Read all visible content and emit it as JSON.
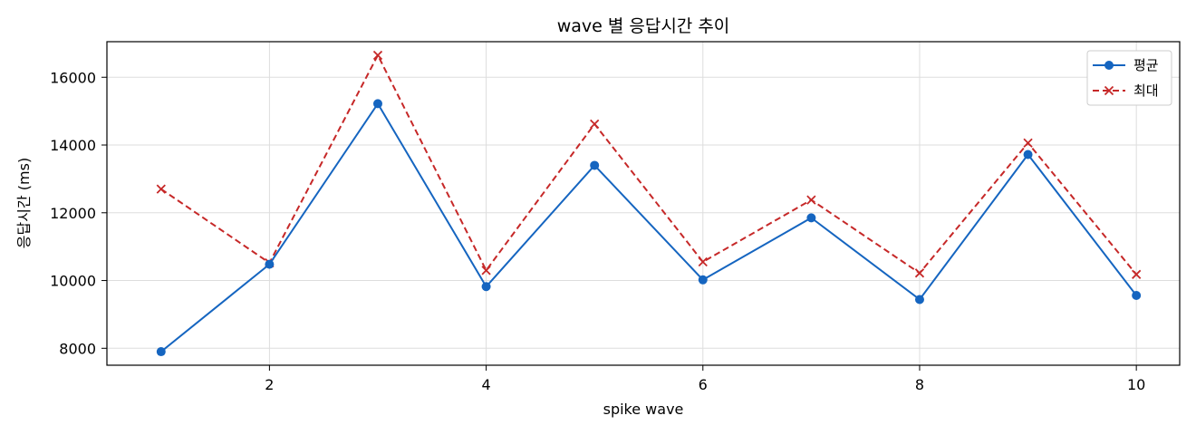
{
  "chart_data": {
    "type": "line",
    "title": "wave 별 응답시간 추이",
    "xlabel": "spike wave",
    "ylabel": "응답시간 (ms)",
    "xlim": [
      0.5,
      10.4
    ],
    "ylim": [
      7500,
      17050
    ],
    "xticks": [
      2,
      4,
      6,
      8,
      10
    ],
    "yticks": [
      8000,
      10000,
      12000,
      14000,
      16000
    ],
    "grid": true,
    "legend_position": "top-right",
    "x": [
      1,
      2,
      3,
      4,
      5,
      6,
      7,
      8,
      9,
      10
    ],
    "series": [
      {
        "name": "평균",
        "color": "#1565c0",
        "style": "solid",
        "marker": "circle",
        "values": [
          7900,
          10480,
          15220,
          9820,
          13400,
          10020,
          11850,
          9440,
          13720,
          9560
        ]
      },
      {
        "name": "최대",
        "color": "#c62828",
        "style": "dashed",
        "marker": "x",
        "values": [
          12700,
          10520,
          16650,
          10300,
          14620,
          10550,
          12380,
          10220,
          14060,
          10180
        ]
      }
    ]
  }
}
